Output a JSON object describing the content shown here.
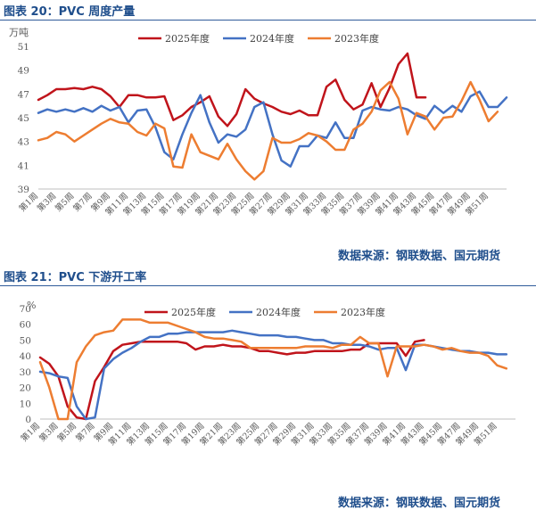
{
  "figures": [
    {
      "title": "图表 20：PVC 周度产量",
      "source": "数据来源：钢联数据、国元期货"
    },
    {
      "title": "图表 21：PVC 下游开工率",
      "source": "数据来源：钢联数据、国元期货"
    }
  ],
  "colors": {
    "s2025": "#c0141b",
    "s2024": "#4472c4",
    "s2023": "#ed7d31",
    "axis": "#bfbfbf",
    "tick": "#595959"
  },
  "week_ticks": [
    "第1周",
    "第3周",
    "第5周",
    "第7周",
    "第9周",
    "第11周",
    "第13周",
    "第15周",
    "第17周",
    "第19周",
    "第21周",
    "第23周",
    "第25周",
    "第27周",
    "第29周",
    "第31周",
    "第33周",
    "第35周",
    "第37周",
    "第39周",
    "第41周",
    "第43周",
    "第45周",
    "第47周",
    "第49周",
    "第51周"
  ],
  "chart_data": [
    {
      "type": "line",
      "title": "PVC 周度产量",
      "ylabel": "万吨",
      "ylim": [
        39,
        51
      ],
      "yticks": [
        39,
        41,
        43,
        45,
        47,
        49,
        51
      ],
      "legend_position": "top",
      "series": [
        {
          "name": "2025年度",
          "x_start": 1,
          "values": [
            46.5,
            46.9,
            47.4,
            47.4,
            47.5,
            47.4,
            47.6,
            47.4,
            46.8,
            45.9,
            46.9,
            46.9,
            46.7,
            46.7,
            46.8,
            44.8,
            45.2,
            45.9,
            46.3,
            46.8,
            45.1,
            44.3,
            45.3,
            47.4,
            46.6,
            46.2,
            45.9,
            45.5,
            45.3,
            45.6,
            45.2,
            45.2,
            47.6,
            48.2,
            46.5,
            45.7,
            46.1,
            47.9,
            45.9,
            47.5,
            49.5,
            50.4,
            46.7,
            46.7
          ]
        },
        {
          "name": "2024年度",
          "x_start": 1,
          "values": [
            45.4,
            45.7,
            45.5,
            45.7,
            45.5,
            45.8,
            45.5,
            46.0,
            45.6,
            45.9,
            44.6,
            45.6,
            45.7,
            44.2,
            42.1,
            41.5,
            43.6,
            45.4,
            46.9,
            44.6,
            42.9,
            43.6,
            43.4,
            44.0,
            45.9,
            46.3,
            43.6,
            41.4,
            40.9,
            42.6,
            42.6,
            43.5,
            43.3,
            44.6,
            43.3,
            43.3,
            45.6,
            45.9,
            45.7,
            45.6,
            45.9,
            45.7,
            45.2,
            44.9,
            46.0,
            45.4,
            46.0,
            45.5,
            46.8,
            47.2,
            45.9,
            45.9,
            46.7
          ]
        },
        {
          "name": "2023年度",
          "x_start": 1,
          "values": [
            43.1,
            43.3,
            43.8,
            43.6,
            43.0,
            43.5,
            44.0,
            44.5,
            44.9,
            44.6,
            44.5,
            43.8,
            43.5,
            44.5,
            44.1,
            40.9,
            40.8,
            43.6,
            42.1,
            41.8,
            41.5,
            42.8,
            41.5,
            40.5,
            39.8,
            40.5,
            43.3,
            42.9,
            42.9,
            43.2,
            43.7,
            43.5,
            43.0,
            42.3,
            42.3,
            44.0,
            44.5,
            45.5,
            47.3,
            48.0,
            46.6,
            43.6,
            45.4,
            45.1,
            44.0,
            45.0,
            45.1,
            46.4,
            48.0,
            46.5,
            44.7,
            45.5
          ]
        }
      ]
    },
    {
      "type": "line",
      "title": "PVC 下游开工率",
      "ylabel": "%",
      "ylim": [
        0,
        70
      ],
      "yticks": [
        0,
        10,
        20,
        30,
        40,
        50,
        60,
        70
      ],
      "legend_position": "top",
      "series": [
        {
          "name": "2025年度",
          "x_start": 1,
          "values": [
            39,
            35,
            27,
            8,
            1,
            0,
            24,
            33,
            43,
            47,
            48,
            49,
            49,
            49,
            49,
            49,
            48,
            44,
            46,
            46,
            47,
            46,
            46,
            45,
            43,
            43,
            42,
            41,
            42,
            42,
            43,
            43,
            43,
            43,
            44,
            44,
            48,
            48,
            48,
            48,
            40,
            49,
            50
          ]
        },
        {
          "name": "2024年度",
          "x_start": 1,
          "values": [
            30,
            29,
            27,
            26,
            8,
            0,
            1,
            32,
            38,
            42,
            45,
            49,
            52,
            52,
            54,
            54,
            55,
            55,
            55,
            55,
            55,
            56,
            55,
            54,
            53,
            53,
            53,
            52,
            52,
            51,
            50,
            50,
            48,
            48,
            47,
            47,
            46,
            44,
            45,
            45,
            31,
            47,
            47,
            46,
            45,
            44,
            43,
            43,
            42,
            42,
            41,
            41
          ]
        },
        {
          "name": "2023年度",
          "x_start": 1,
          "values": [
            36,
            20,
            0,
            0,
            36,
            46,
            53,
            55,
            56,
            63,
            63,
            63,
            61,
            61,
            61,
            59,
            57,
            55,
            52,
            51,
            51,
            50,
            49,
            45,
            45,
            45,
            45,
            45,
            45,
            46,
            46,
            46,
            45,
            47,
            47,
            52,
            48,
            48,
            27,
            46,
            46,
            46,
            47,
            46,
            44,
            45,
            43,
            42,
            42,
            40,
            34,
            32
          ]
        }
      ]
    }
  ]
}
